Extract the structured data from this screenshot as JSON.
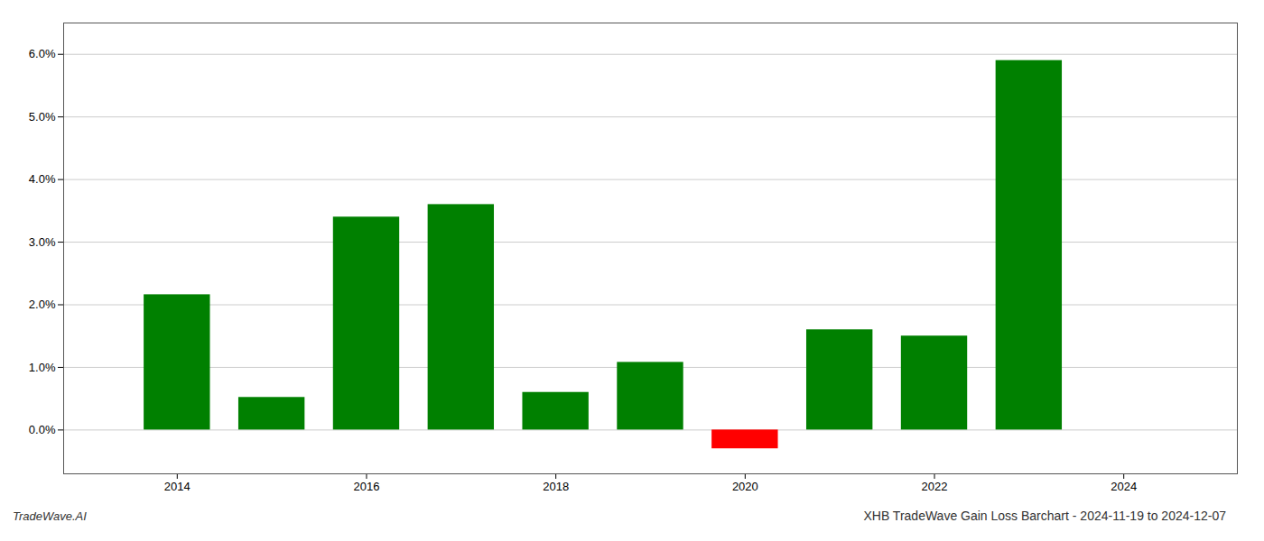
{
  "chart_data": {
    "type": "bar",
    "title": "XHB TradeWave Gain Loss Barchart - 2024-11-19 to 2024-12-07",
    "annotations": [
      "TradeWave.AI"
    ],
    "x": [
      2014,
      2015,
      2016,
      2017,
      2018,
      2019,
      2020,
      2021,
      2022,
      2023,
      2024
    ],
    "values": [
      0.0216,
      0.0052,
      0.034,
      0.036,
      0.006,
      0.0108,
      -0.003,
      0.016,
      0.015,
      0.059,
      0.0
    ],
    "colors": [
      "#008000",
      "#008000",
      "#008000",
      "#008000",
      "#008000",
      "#008000",
      "#ff0000",
      "#008000",
      "#008000",
      "#008000",
      "#008000"
    ],
    "xlim": [
      2012.8,
      2025.2
    ],
    "xticks": [
      2014,
      2016,
      2018,
      2020,
      2022,
      2024
    ],
    "ylim": [
      -0.007,
      0.065
    ],
    "yticks": [
      {
        "value": 0.0,
        "label": "0.0%"
      },
      {
        "value": 0.01,
        "label": "1.0%"
      },
      {
        "value": 0.02,
        "label": "2.0%"
      },
      {
        "value": 0.03,
        "label": "3.0%"
      },
      {
        "value": 0.04,
        "label": "4.0%"
      },
      {
        "value": 0.05,
        "label": "5.0%"
      },
      {
        "value": 0.06,
        "label": "6.0%"
      }
    ],
    "grid": true
  }
}
